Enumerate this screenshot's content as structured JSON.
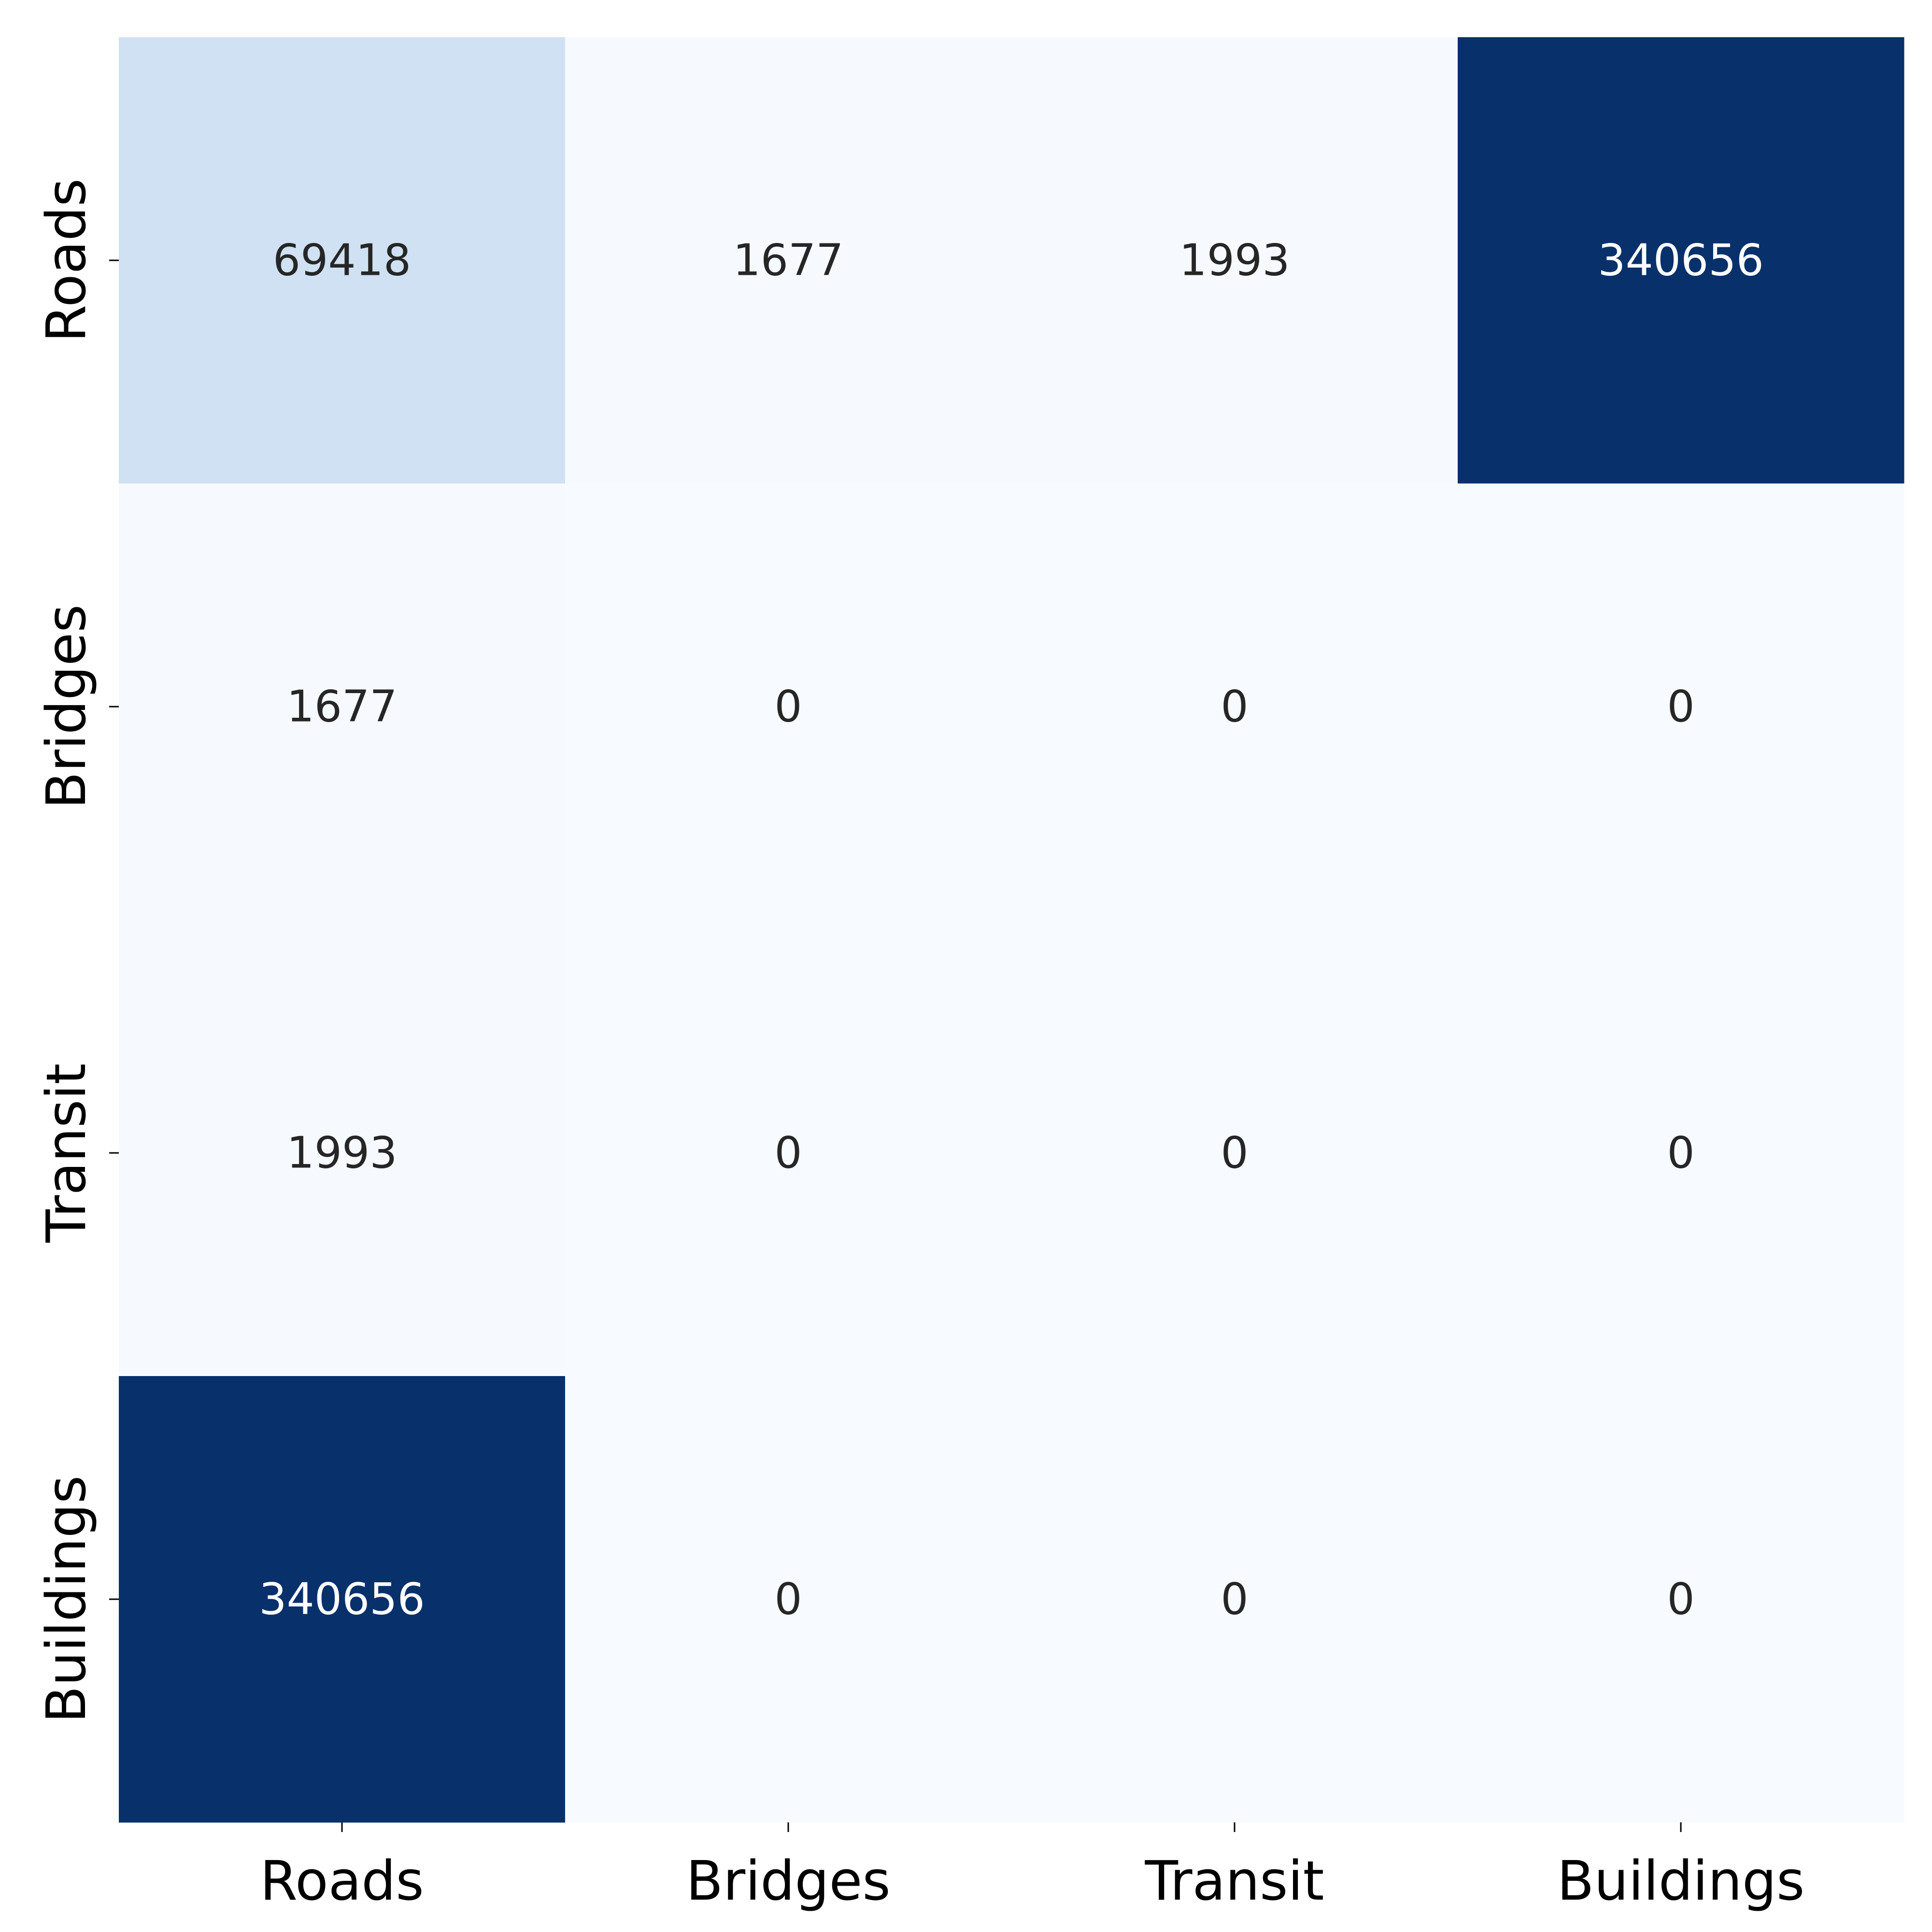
{
  "chart_data": {
    "type": "heatmap",
    "title": "",
    "xlabel": "",
    "ylabel": "",
    "x_categories": [
      "Roads",
      "Bridges",
      "Transit",
      "Buildings"
    ],
    "y_categories": [
      "Roads",
      "Bridges",
      "Transit",
      "Buildings"
    ],
    "values": [
      [
        69418,
        1677,
        1993,
        340656
      ],
      [
        1677,
        0,
        0,
        0
      ],
      [
        1993,
        0,
        0,
        0
      ],
      [
        340656,
        0,
        0,
        0
      ]
    ],
    "colormap": "Blues",
    "colors": {
      "low": "#f7fbff",
      "mid": "#c6dbef",
      "high": "#08306b",
      "dark_text": "#262626",
      "light_text": "#ffffff"
    },
    "colorbar": false,
    "grid": false
  }
}
